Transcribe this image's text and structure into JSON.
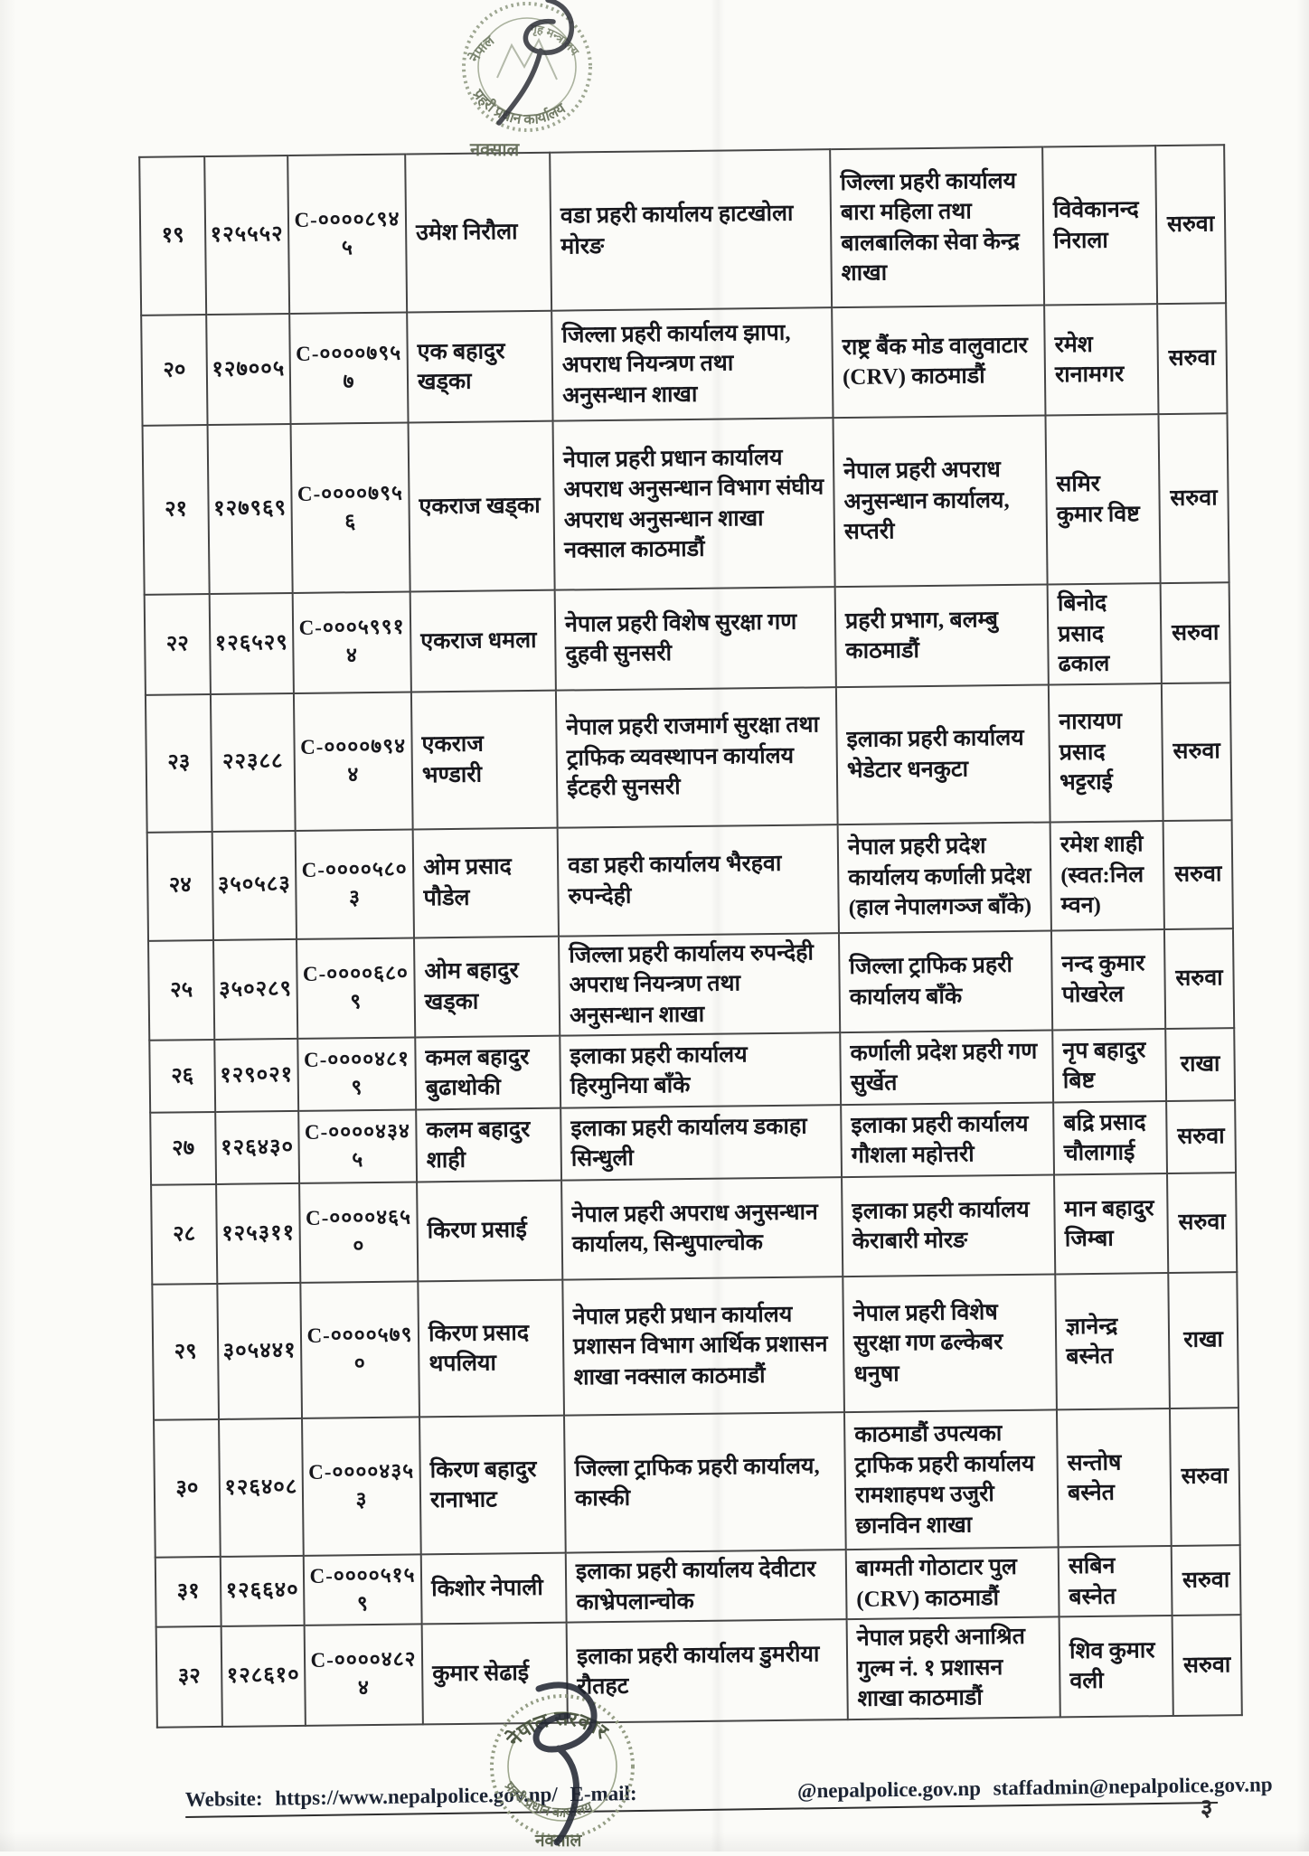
{
  "stamps": {
    "top": {
      "country": "नेपाल",
      "ministry": "गृह मन्त्रालय",
      "org": "प्रहरी प्रधान कार्यालय",
      "place": "नक्साल"
    },
    "bottom": {
      "government": "नेपाल सरकार",
      "org": "प्रहरी प्रधान कार्यालय",
      "place": "नक्साल"
    }
  },
  "table": {
    "rows": [
      {
        "sn": "१९",
        "employee_no": "१२५५५२",
        "code_no": "C-००००८९४५",
        "name": "उमेश निरौला",
        "office_from": "वडा प्रहरी कार्यालय हाटखोला मोरङ",
        "office_to": "जिल्ला प्रहरी कार्यालय बारा महिला तथा बालबालिका सेवा केन्द्र शाखा",
        "replaced_by": "विवेकानन्द निराला",
        "remark": "सरुवा"
      },
      {
        "sn": "२०",
        "employee_no": "१२७००५",
        "code_no": "C-००००७९५७",
        "name": "एक बहादुर खड्का",
        "office_from": "जिल्ला प्रहरी कार्यालय झापा, अपराध नियन्त्रण तथा अनुसन्धान शाखा",
        "office_to": "राष्ट्र बैंक मोड वालुवाटार (CRV) काठमाडौं",
        "replaced_by": "रमेश रानामगर",
        "remark": "सरुवा"
      },
      {
        "sn": "२१",
        "employee_no": "१२७९६९",
        "code_no": "C-००००७९५६",
        "name": "एकराज खड्का",
        "office_from": "नेपाल प्रहरी प्रधान कार्यालय अपराध अनुसन्धान विभाग संघीय अपराध अनुसन्धान शाखा नक्साल काठमाडौं",
        "office_to": "नेपाल प्रहरी अपराध अनुसन्धान कार्यालय, सप्तरी",
        "replaced_by": "समिर कुमार विष्ट",
        "remark": "सरुवा"
      },
      {
        "sn": "२२",
        "employee_no": "१२६५२९",
        "code_no": "C-०००५९९१४",
        "name": "एकराज धमला",
        "office_from": "नेपाल प्रहरी विशेष सुरक्षा गण दुहवी सुनसरी",
        "office_to": "प्रहरी प्रभाग, बलम्बु काठमाडौं",
        "replaced_by": "बिनोद प्रसाद ढकाल",
        "remark": "सरुवा"
      },
      {
        "sn": "२३",
        "employee_no": "२२३८८",
        "code_no": "C-००००७९४४",
        "name": "एकराज भण्डारी",
        "office_from": "नेपाल प्रहरी राजमार्ग सुरक्षा तथा ट्राफिक व्यवस्थापन कार्यालय ईटहरी सुनसरी",
        "office_to": "इलाका प्रहरी कार्यालय भेडेटार धनकुटा",
        "replaced_by": "नारायण प्रसाद भट्टराई",
        "remark": "सरुवा"
      },
      {
        "sn": "२४",
        "employee_no": "३५०५८३",
        "code_no": "C-००००५८०३",
        "name": "ओम प्रसाद पौडेल",
        "office_from": "वडा प्रहरी कार्यालय भैरहवा रुपन्देही",
        "office_to": "नेपाल प्रहरी प्रदेश कार्यालय कर्णाली प्रदेश (हाल नेपालगञ्ज बाँके)",
        "replaced_by": "रमेश शाही (स्वत:निल म्वन)",
        "remark": "सरुवा"
      },
      {
        "sn": "२५",
        "employee_no": "३५०२८९",
        "code_no": "C-००००६८०९",
        "name": "ओम बहादुर खड्का",
        "office_from": "जिल्ला प्रहरी कार्यालय रुपन्देही अपराध नियन्त्रण तथा अनुसन्धान शाखा",
        "office_to": "जिल्ला ट्राफिक प्रहरी कार्यालय बाँके",
        "replaced_by": "नन्द कुमार पोखरेल",
        "remark": "सरुवा"
      },
      {
        "sn": "२६",
        "employee_no": "१२९०२१",
        "code_no": "C-००००४८१९",
        "name": "कमल बहादुर बुढाथोकी",
        "office_from": "इलाका प्रहरी कार्यालय हिरमुनिया बाँके",
        "office_to": "कर्णाली प्रदेश प्रहरी गण सुर्खेत",
        "replaced_by": "नृप बहादुर बिष्ट",
        "remark": "राखा"
      },
      {
        "sn": "२७",
        "employee_no": "१२६४३०",
        "code_no": "C-००००४३४५",
        "name": "कलम बहादुर शाही",
        "office_from": "इलाका प्रहरी कार्यालय डकाहा सिन्धुली",
        "office_to": "इलाका प्रहरी कार्यालय गौशला महोत्तरी",
        "replaced_by": "बद्रि प्रसाद चौलागाई",
        "remark": "सरुवा"
      },
      {
        "sn": "२८",
        "employee_no": "१२५३११",
        "code_no": "C-००००४६५०",
        "name": "किरण प्रसाई",
        "office_from": "नेपाल प्रहरी अपराध अनुसन्धान कार्यालय, सिन्धुपाल्चोक",
        "office_to": "इलाका प्रहरी कार्यालय केराबारी मोरङ",
        "replaced_by": "मान बहादुर जिम्बा",
        "remark": "सरुवा"
      },
      {
        "sn": "२९",
        "employee_no": "३०५४४१",
        "code_no": "C-००००५७९०",
        "name": "किरण प्रसाद थपलिया",
        "office_from": "नेपाल प्रहरी प्रधान कार्यालय प्रशासन विभाग आर्थिक प्रशासन शाखा नक्साल काठमाडौं",
        "office_to": "नेपाल प्रहरी विशेष सुरक्षा गण ढल्केबर धनुषा",
        "replaced_by": "ज्ञानेन्द्र बस्नेत",
        "remark": "राखा"
      },
      {
        "sn": "३०",
        "employee_no": "१२६४०८",
        "code_no": "C-००००४३५३",
        "name": "किरण बहादुर रानाभाट",
        "office_from": "जिल्ला ट्राफिक प्रहरी कार्यालय, कास्की",
        "office_to": "काठमाडौं उपत्यका ट्राफिक प्रहरी कार्यालय रामशाहपथ उजुरी छानविन शाखा",
        "replaced_by": "सन्तोष बस्नेत",
        "remark": "सरुवा"
      },
      {
        "sn": "३१",
        "employee_no": "१२६६४०",
        "code_no": "C-००००५१५९",
        "name": "किशोर नेपाली",
        "office_from": "इलाका प्रहरी कार्यालय देवीटार काभ्रेपलान्चोक",
        "office_to": "बाग्मती गोठाटार पुल (CRV) काठमाडौं",
        "replaced_by": "सबिन बस्नेत",
        "remark": "सरुवा"
      },
      {
        "sn": "३२",
        "employee_no": "१२८६१०",
        "code_no": "C-००००४८२४",
        "name": "कुमार सेढाई",
        "office_from": "इलाका प्रहरी कार्यालय डुमरीया रौतहट",
        "office_to": "नेपाल प्रहरी अनाश्रित गुल्म नं. १ प्रशासन शाखा काठमाडौं",
        "replaced_by": "शिव कुमार वली",
        "remark": "सरुवा"
      }
    ]
  },
  "footer": {
    "website_label": "Website:",
    "website_url": "https://www.nepalpolice.gov.np/",
    "email_label": "E-mail:",
    "email_partial": "@nepalpolice.gov.np",
    "email_admin": "staffadmin@nepalpolice.gov.np"
  },
  "page": {
    "number": "३"
  }
}
